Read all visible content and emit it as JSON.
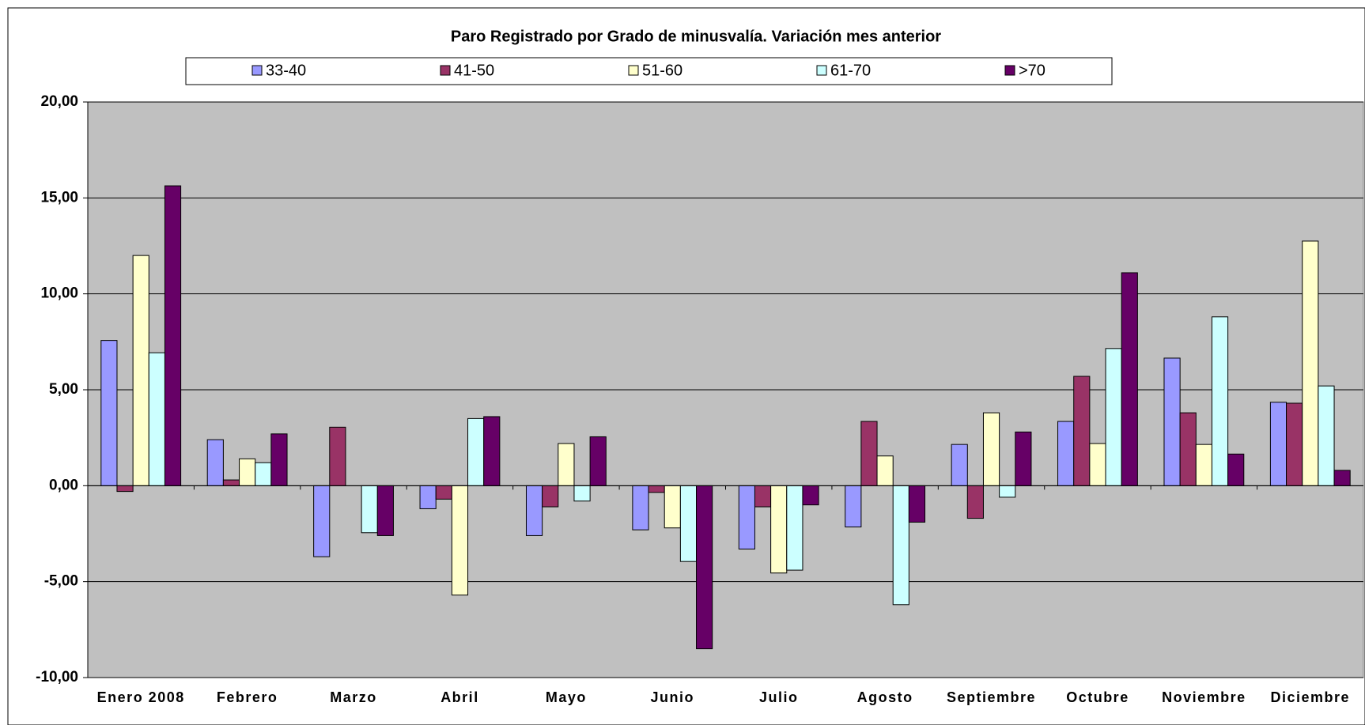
{
  "chart_data": {
    "type": "bar",
    "title": "Paro Registrado por Grado de minusvalía. Variación mes anterior",
    "categories": [
      "Enero 2008",
      "Febrero",
      "Marzo",
      "Abril",
      "Mayo",
      "Junio",
      "Julio",
      "Agosto",
      "Septiembre",
      "Octubre",
      "Noviembre",
      "Diciembre"
    ],
    "series": [
      {
        "name": "33-40",
        "color": "#9999ff",
        "values": [
          7.57,
          2.4,
          -3.7,
          -1.2,
          -2.6,
          -2.3,
          -3.3,
          -2.15,
          2.15,
          3.35,
          6.65,
          4.35
        ]
      },
      {
        "name": "41-50",
        "color": "#993366",
        "values": [
          -0.3,
          0.3,
          3.05,
          -0.7,
          -1.1,
          -0.35,
          -1.1,
          3.35,
          -1.7,
          5.7,
          3.8,
          4.3
        ]
      },
      {
        "name": "51-60",
        "color": "#ffffcc",
        "values": [
          12.0,
          1.4,
          0,
          -5.7,
          2.2,
          -2.2,
          -4.55,
          1.55,
          3.8,
          2.2,
          2.15,
          12.75
        ]
      },
      {
        "name": "61-70",
        "color": "#ccffff",
        "values": [
          6.93,
          1.2,
          -2.45,
          3.5,
          -0.8,
          -3.95,
          -4.4,
          -6.2,
          -0.6,
          7.15,
          8.8,
          5.2
        ]
      },
      {
        "name": ">70",
        "color": "#660066",
        "values": [
          15.63,
          2.7,
          -2.6,
          3.6,
          2.55,
          -8.5,
          -1.0,
          -1.9,
          2.8,
          11.1,
          1.65,
          0.8
        ]
      }
    ],
    "ylim": [
      -10,
      20
    ],
    "yticks": [
      {
        "value": -10,
        "label": "-10,00"
      },
      {
        "value": -5,
        "label": "-5,00"
      },
      {
        "value": 0,
        "label": "0,00"
      },
      {
        "value": 5,
        "label": "5,00"
      },
      {
        "value": 10,
        "label": "10,00"
      },
      {
        "value": 15,
        "label": "15,00"
      },
      {
        "value": 20,
        "label": "20,00"
      }
    ],
    "grid": true,
    "plot_background": "#c0c0c0"
  }
}
